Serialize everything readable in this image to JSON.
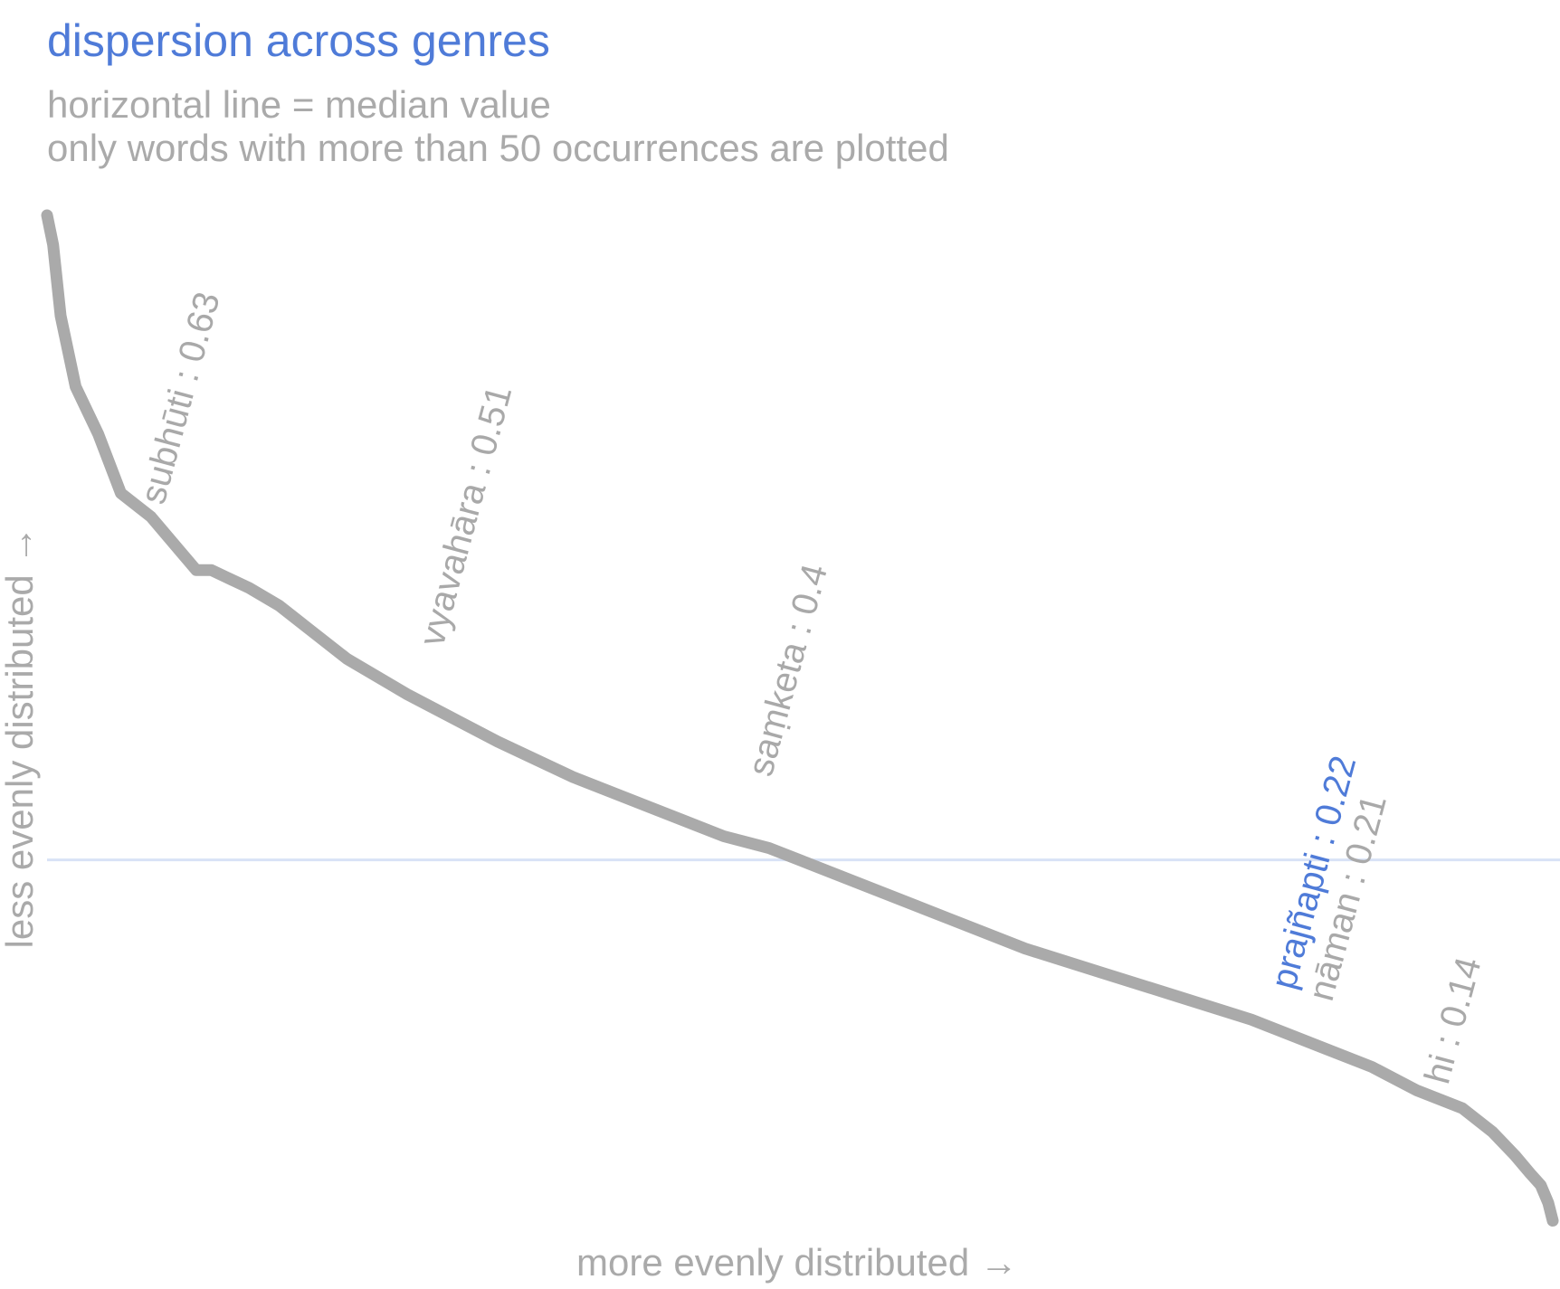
{
  "chart_data": {
    "type": "line",
    "title": "dispersion across genres",
    "subtitle_lines": [
      "horizontal line = median value",
      "only words with more than 50 occurrences are plotted"
    ],
    "xlabel": "more evenly distributed →",
    "ylabel": "less evenly distributed →",
    "x_range": [
      1,
      1000
    ],
    "ylim": [
      0.03,
      0.885
    ],
    "median": 0.34,
    "grid": false,
    "colors": {
      "title": "#4f7bd8",
      "subtitle": "#aaaaaa",
      "curve": "#aaaaaa",
      "median_line": "#d8e2f6",
      "label_default": "#a9a9a9",
      "label_highlight": "#4f7bd8"
    },
    "series": [
      {
        "x": [
          1,
          5,
          10,
          20,
          35,
          50,
          70,
          90,
          100,
          110,
          135,
          155,
          165,
          175,
          200,
          240,
          300,
          350,
          400,
          450,
          480,
          500,
          550,
          600,
          650,
          700,
          750,
          800,
          850,
          880,
          910,
          940,
          960,
          975,
          985,
          992,
          997,
          1000
        ],
        "y": [
          0.885,
          0.86,
          0.8,
          0.74,
          0.7,
          0.65,
          0.63,
          0.6,
          0.585,
          0.585,
          0.57,
          0.555,
          0.545,
          0.535,
          0.51,
          0.48,
          0.44,
          0.41,
          0.385,
          0.36,
          0.35,
          0.34,
          0.315,
          0.29,
          0.265,
          0.245,
          0.225,
          0.205,
          0.18,
          0.165,
          0.145,
          0.13,
          0.11,
          0.09,
          0.075,
          0.065,
          0.05,
          0.035
        ]
      }
    ],
    "annotations": [
      {
        "text": "subhūti : 0.63",
        "x": 70,
        "y": 0.63,
        "highlight": false
      },
      {
        "text": "vyavahāra : 0.51",
        "x": 255,
        "y": 0.51,
        "highlight": false
      },
      {
        "text": "saṃketa : 0.4",
        "x": 473,
        "y": 0.4,
        "highlight": false
      },
      {
        "text": "nāman : 0.21",
        "x": 845,
        "y": 0.21,
        "highlight": false
      },
      {
        "text": "prajñapti : 0.22",
        "x": 820,
        "y": 0.22,
        "highlight": true
      },
      {
        "text": "hi : 0.14",
        "x": 922,
        "y": 0.14,
        "highlight": false
      }
    ]
  }
}
